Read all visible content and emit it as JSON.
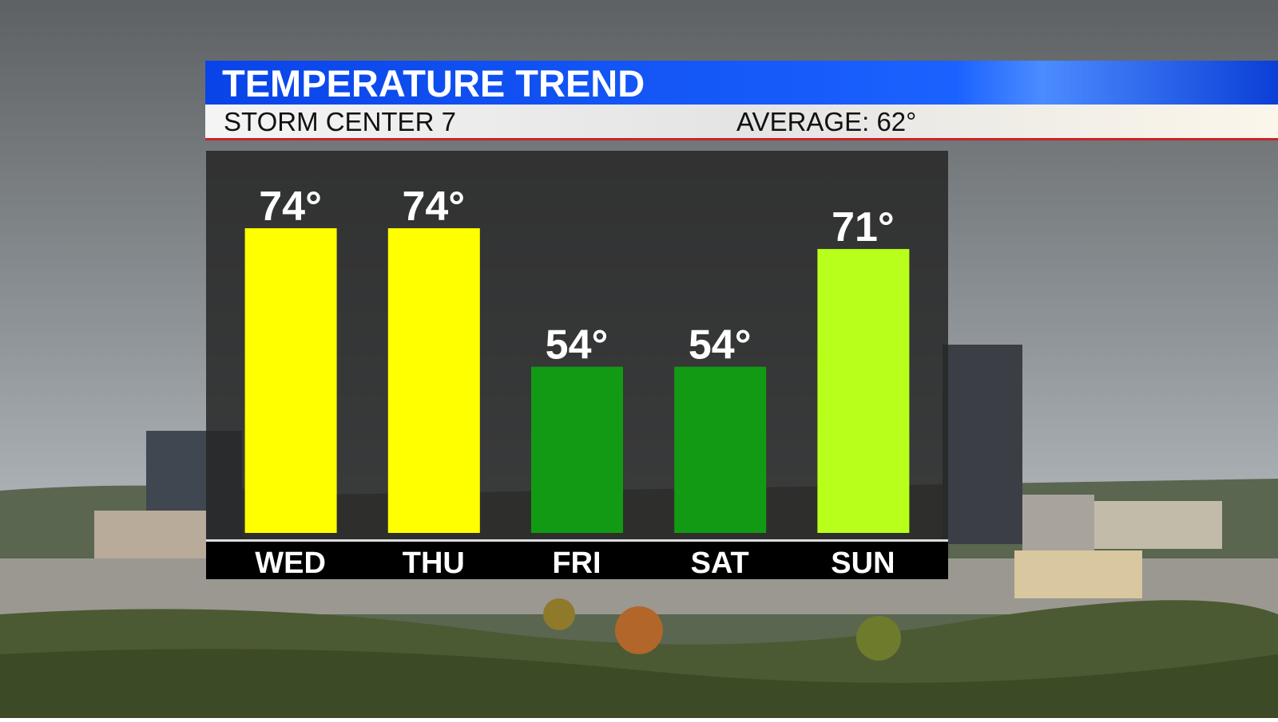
{
  "chart_data": {
    "type": "bar",
    "title": "TEMPERATURE TREND",
    "subtitle": "STORM CENTER 7",
    "annotation": "AVERAGE: 62°",
    "categories": [
      "WED",
      "THU",
      "FRI",
      "SAT",
      "SUN"
    ],
    "values": [
      74,
      74,
      54,
      54,
      71
    ],
    "value_labels": [
      "74°",
      "74°",
      "54°",
      "54°",
      "71°"
    ],
    "colors": [
      "#ffff00",
      "#ffff00",
      "#139a14",
      "#139a14",
      "#b9ff1c"
    ],
    "ylim": [
      30,
      80
    ]
  }
}
